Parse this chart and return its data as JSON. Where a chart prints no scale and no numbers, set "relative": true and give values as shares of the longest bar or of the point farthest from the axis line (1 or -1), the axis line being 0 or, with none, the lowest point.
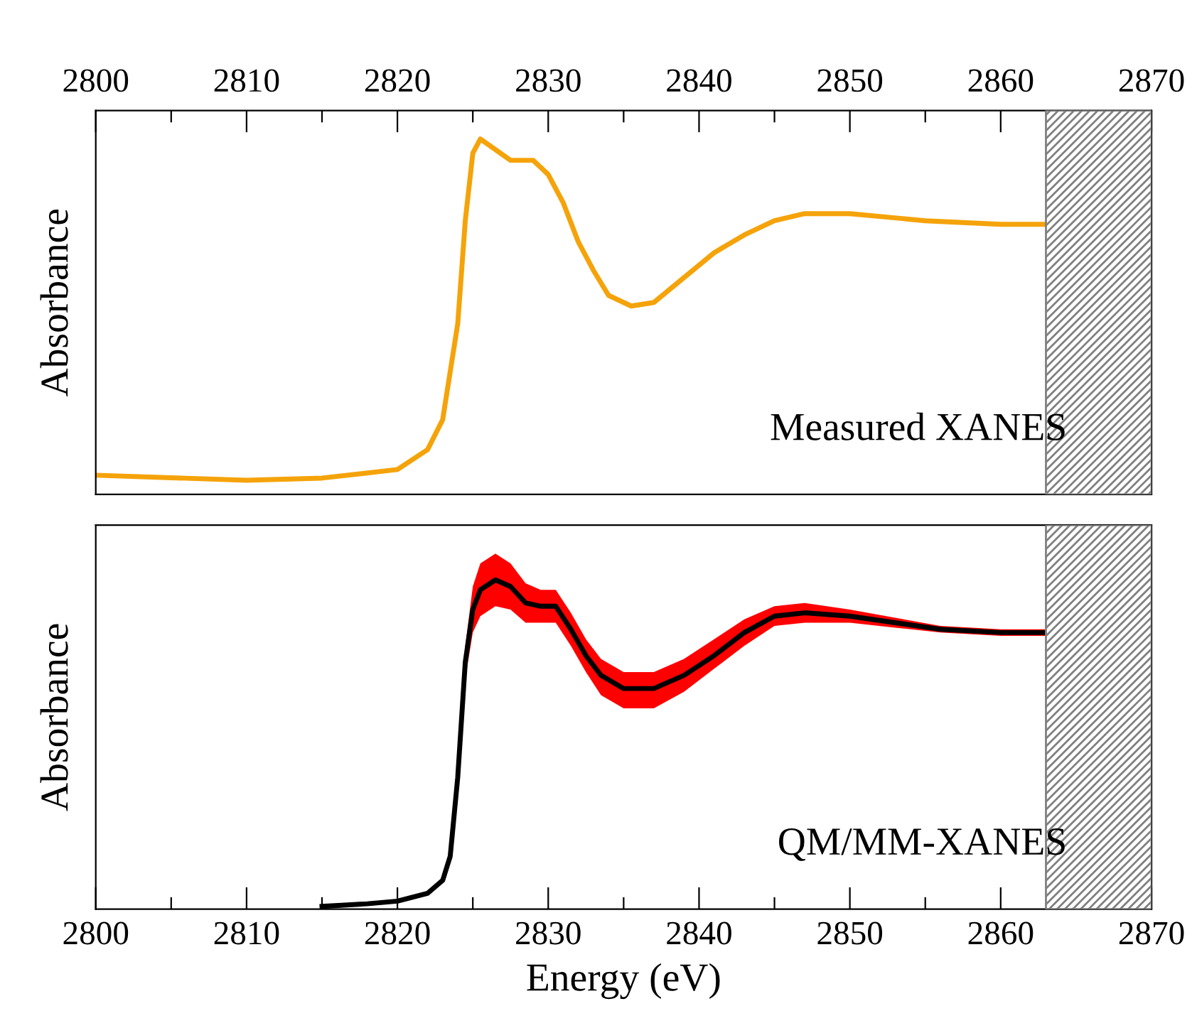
{
  "chart_data": [
    {
      "type": "line",
      "relative": true,
      "ylabel": "Absorbance",
      "annotations": [
        "Measured XANES"
      ],
      "xlim": [
        2800,
        2870
      ],
      "xticks": [
        2800,
        {
          "value": 2805,
          "label": null
        },
        2810,
        {
          "value": 2815,
          "label": null
        },
        2820,
        {
          "value": 2825,
          "label": null
        },
        2830,
        {
          "value": 2835,
          "label": null
        },
        2840,
        {
          "value": 2845,
          "label": null
        },
        2850,
        {
          "value": 2855,
          "label": null
        },
        2860,
        {
          "value": 2865,
          "label": null
        },
        2870
      ],
      "bands": [
        {
          "axis": "x",
          "from": 2863,
          "to": 2870,
          "color": "#808080"
        }
      ],
      "series": [
        {
          "color": "#f5a30a",
          "x": [
            2800,
            2810,
            2815,
            2820,
            2822,
            2823,
            2824,
            2824.5,
            2825,
            2825.5,
            2826.5,
            2827.5,
            2829,
            2830,
            2831,
            2832,
            2833,
            2834,
            2835.5,
            2837,
            2839,
            2841,
            2843,
            2845,
            2847,
            2850,
            2855,
            2860,
            2863
          ],
          "values": [
            0.054,
            0.04,
            0.046,
            0.07,
            0.126,
            0.21,
            0.48,
            0.77,
            0.96,
            1.0,
            0.97,
            0.94,
            0.94,
            0.9,
            0.82,
            0.71,
            0.63,
            0.56,
            0.53,
            0.54,
            0.61,
            0.68,
            0.73,
            0.77,
            0.79,
            0.79,
            0.77,
            0.76,
            0.76
          ]
        }
      ]
    },
    {
      "type": "line",
      "relative": true,
      "ylabel": "Absorbance",
      "xlabel": "Energy (eV)",
      "annotations": [
        "QM/MM-XANES"
      ],
      "xlim": [
        2800,
        2870
      ],
      "xticks": [
        2800,
        {
          "value": 2805,
          "label": null
        },
        2810,
        {
          "value": 2815,
          "label": null
        },
        2820,
        {
          "value": 2825,
          "label": null
        },
        2830,
        {
          "value": 2835,
          "label": null
        },
        2840,
        {
          "value": 2845,
          "label": null
        },
        2850,
        {
          "value": 2855,
          "label": null
        },
        2860,
        {
          "value": 2865,
          "label": null
        },
        2870
      ],
      "bands": [
        {
          "axis": "x",
          "from": 2863,
          "to": 2870,
          "color": "#808080"
        }
      ],
      "series": [
        {
          "color": "#000000",
          "x": [
            2815,
            2818,
            2820,
            2822,
            2823,
            2823.5,
            2824,
            2824.5,
            2825,
            2825.5,
            2826.5,
            2827.5,
            2828.5,
            2829.5,
            2830.5,
            2831.5,
            2832.5,
            2833.5,
            2835,
            2837,
            2839,
            2841,
            2843,
            2845,
            2847,
            2850,
            2853,
            2856,
            2860,
            2863
          ],
          "values": [
            0.008,
            0.016,
            0.024,
            0.048,
            0.087,
            0.16,
            0.4,
            0.75,
            0.91,
            0.97,
            1.0,
            0.98,
            0.93,
            0.92,
            0.92,
            0.85,
            0.77,
            0.71,
            0.67,
            0.67,
            0.71,
            0.77,
            0.84,
            0.89,
            0.9,
            0.89,
            0.87,
            0.85,
            0.84,
            0.84
          ],
          "lower": [
            0.008,
            0.016,
            0.024,
            0.048,
            0.087,
            0.16,
            0.4,
            0.7,
            0.84,
            0.89,
            0.92,
            0.91,
            0.87,
            0.87,
            0.87,
            0.8,
            0.72,
            0.65,
            0.61,
            0.61,
            0.66,
            0.73,
            0.8,
            0.86,
            0.87,
            0.87,
            0.855,
            0.84,
            0.83,
            0.83
          ],
          "upper": [
            0.008,
            0.016,
            0.024,
            0.048,
            0.087,
            0.16,
            0.4,
            0.8,
            0.98,
            1.05,
            1.08,
            1.05,
            0.99,
            0.97,
            0.97,
            0.9,
            0.82,
            0.76,
            0.72,
            0.72,
            0.76,
            0.82,
            0.88,
            0.92,
            0.93,
            0.91,
            0.885,
            0.86,
            0.85,
            0.85
          ]
        }
      ]
    }
  ]
}
